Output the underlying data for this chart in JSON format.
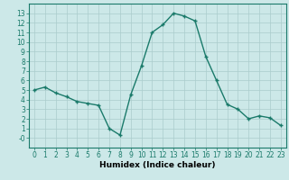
{
  "x_values": [
    0,
    1,
    2,
    3,
    4,
    5,
    6,
    7,
    8,
    9,
    10,
    11,
    12,
    13,
    14,
    15,
    16,
    17,
    18,
    19,
    20,
    21,
    22,
    23
  ],
  "y_values": [
    5.0,
    5.3,
    4.7,
    4.3,
    3.8,
    3.6,
    3.4,
    1.0,
    0.3,
    4.5,
    7.5,
    11.0,
    11.8,
    13.0,
    12.7,
    12.2,
    8.5,
    6.0,
    3.5,
    3.0,
    2.0,
    2.3,
    2.1,
    1.3
  ],
  "marker": "+",
  "line_color": "#1a7a6a",
  "bg_color": "#cce8e8",
  "grid_color": "#aacccc",
  "xlabel": "Humidex (Indice chaleur)",
  "xlim": [
    -0.5,
    23.5
  ],
  "ylim": [
    -1,
    14
  ],
  "yticks": [
    0,
    1,
    2,
    3,
    4,
    5,
    6,
    7,
    8,
    9,
    10,
    11,
    12,
    13
  ],
  "ytick_labels": [
    "-0",
    "1",
    "2",
    "3",
    "4",
    "5",
    "6",
    "7",
    "8",
    "9",
    "10",
    "11",
    "12",
    "13"
  ],
  "xticks": [
    0,
    1,
    2,
    3,
    4,
    5,
    6,
    7,
    8,
    9,
    10,
    11,
    12,
    13,
    14,
    15,
    16,
    17,
    18,
    19,
    20,
    21,
    22,
    23
  ],
  "markersize": 3,
  "linewidth": 1.0,
  "tick_fontsize": 5.5,
  "xlabel_fontsize": 6.5
}
